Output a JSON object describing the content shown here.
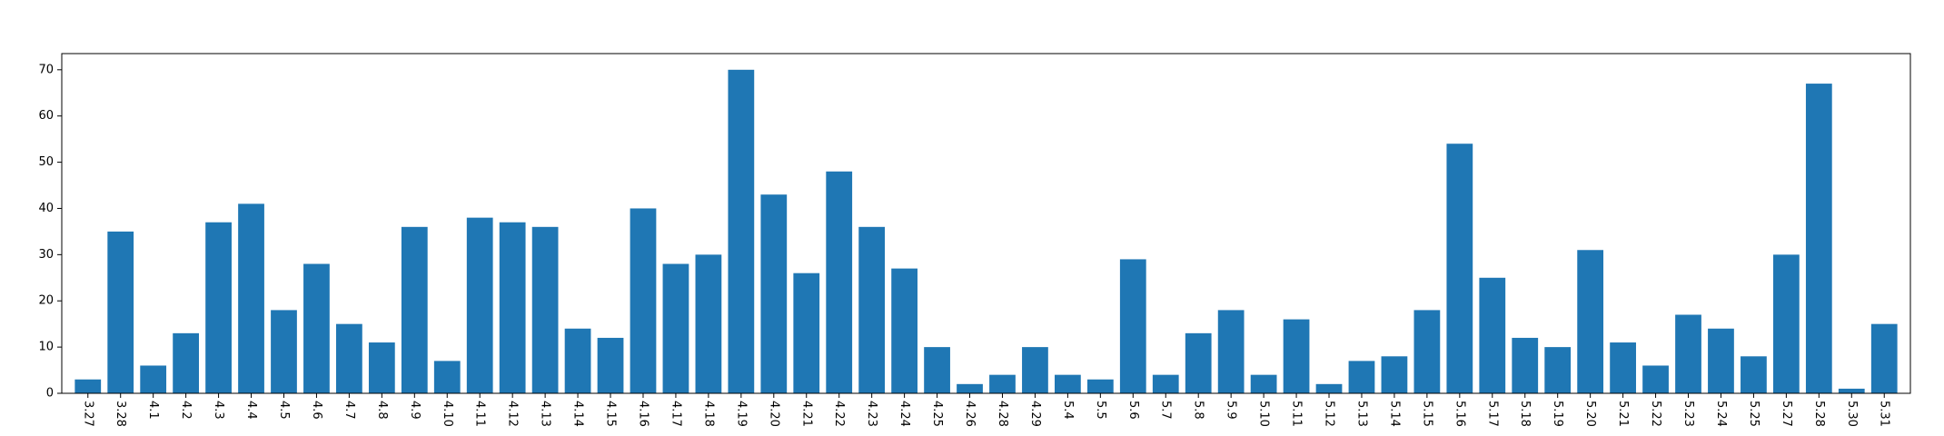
{
  "chart_data": {
    "type": "bar",
    "title": "",
    "xlabel": "",
    "ylabel": "",
    "ylim": [
      0,
      73.5
    ],
    "yticks": [
      0,
      10,
      20,
      30,
      40,
      50,
      60,
      70
    ],
    "grid": false,
    "bar_color": "#1f77b4",
    "categories": [
      "3.27",
      "3.28",
      "4.1",
      "4.2",
      "4.3",
      "4.4",
      "4.5",
      "4.6",
      "4.7",
      "4.8",
      "4.9",
      "4.10",
      "4.11",
      "4.12",
      "4.13",
      "4.14",
      "4.15",
      "4.16",
      "4.17",
      "4.18",
      "4.19",
      "4.20",
      "4.21",
      "4.22",
      "4.23",
      "4.24",
      "4.25",
      "4.26",
      "4.28",
      "4.29",
      "5.4",
      "5.5",
      "5.6",
      "5.7",
      "5.8",
      "5.9",
      "5.10",
      "5.11",
      "5.12",
      "5.13",
      "5.14",
      "5.15",
      "5.16",
      "5.17",
      "5.18",
      "5.19",
      "5.20",
      "5.21",
      "5.22",
      "5.23",
      "5.24",
      "5.25",
      "5.27",
      "5.28",
      "5.30",
      "5.31"
    ],
    "values": [
      3,
      35,
      6,
      13,
      37,
      41,
      18,
      28,
      15,
      11,
      36,
      7,
      38,
      37,
      36,
      14,
      12,
      40,
      28,
      30,
      70,
      43,
      26,
      48,
      36,
      27,
      10,
      2,
      4,
      10,
      4,
      3,
      29,
      4,
      13,
      18,
      4,
      16,
      2,
      7,
      8,
      18,
      54,
      25,
      12,
      10,
      31,
      11,
      6,
      17,
      14,
      8,
      30,
      67,
      1,
      15
    ]
  }
}
